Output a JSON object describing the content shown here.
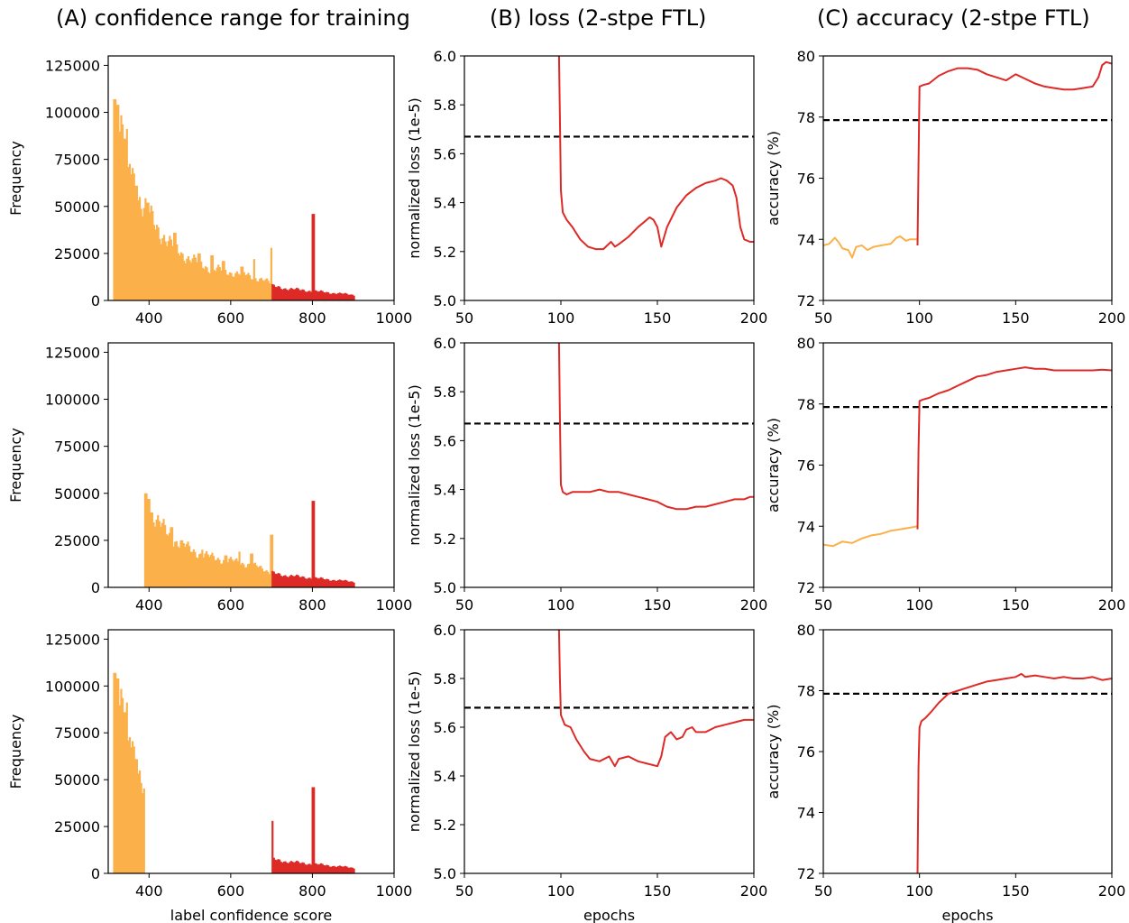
{
  "colors": {
    "orange": "#fbb04a",
    "red": "#de2a26",
    "dashed": "#000000"
  },
  "column_titles": [
    "(A) confidence range for training",
    "(B) loss (2-stpe FTL)",
    "(C) accuracy (2-stpe FTL)"
  ],
  "chart_data": [
    {
      "id": "A1",
      "type": "bar",
      "title": "(A) confidence range for training",
      "xlabel": "",
      "ylabel": "Frequency",
      "xlim": [
        300,
        1000
      ],
      "ylim": [
        0,
        130000
      ],
      "xticks": [
        "400",
        "600",
        "800",
        "1000"
      ],
      "xtick_values": [
        400,
        600,
        800,
        1000
      ],
      "yticks": [
        "0",
        "25000",
        "50000",
        "75000",
        "100000",
        "125000"
      ],
      "ytick_values": [
        0,
        25000,
        50000,
        75000,
        100000,
        125000
      ],
      "series": [
        {
          "color": "orange",
          "x_range": [
            312,
            700
          ],
          "keypoints": [
            [
              312,
              97000
            ],
            [
              316,
              107000
            ],
            [
              330,
              90000
            ],
            [
              350,
              75000
            ],
            [
              380,
              52000
            ],
            [
              400,
              45000
            ],
            [
              450,
              30000
            ],
            [
              500,
              22000
            ],
            [
              550,
              17000
            ],
            [
              600,
              15000
            ],
            [
              650,
              13000
            ],
            [
              700,
              9000
            ]
          ],
          "spikes": [
            [
              315,
              107000
            ],
            [
              321,
              104000
            ],
            [
              339,
              86000
            ],
            [
              347,
              71000
            ],
            [
              365,
              61000
            ],
            [
              395,
              52000
            ],
            [
              460,
              36000
            ],
            [
              520,
              25000
            ],
            [
              553,
              24000
            ],
            [
              580,
              21000
            ],
            [
              625,
              18000
            ],
            [
              655,
              22000
            ],
            [
              698,
              28000
            ]
          ]
        },
        {
          "color": "red",
          "x_range": [
            700,
            900
          ],
          "keypoints": [
            [
              700,
              7500
            ],
            [
              750,
              6000
            ],
            [
              800,
              5000
            ],
            [
              850,
              4000
            ],
            [
              900,
              3000
            ]
          ],
          "spikes": [
            [
              800,
              46000
            ]
          ]
        }
      ]
    },
    {
      "id": "B1",
      "type": "line",
      "title": "(B) loss (2-stpe FTL)",
      "xlabel": "",
      "ylabel": "normalized loss (1e-5)",
      "xlim": [
        50,
        200
      ],
      "ylim": [
        5.0,
        6.0
      ],
      "xticks": [
        "50",
        "100",
        "150",
        "200"
      ],
      "xtick_values": [
        50,
        100,
        150,
        200
      ],
      "yticks": [
        "5.0",
        "5.2",
        "5.4",
        "5.6",
        "5.8",
        "6.0"
      ],
      "ytick_values": [
        5.0,
        5.2,
        5.4,
        5.6,
        5.8,
        6.0
      ],
      "hline": 5.67,
      "series": [
        {
          "color": "red",
          "x": [
            99,
            99.5,
            100,
            101,
            103,
            106,
            110,
            114,
            118,
            122,
            126,
            128,
            130,
            135,
            140,
            143,
            146,
            148,
            150,
            152,
            155,
            160,
            165,
            170,
            175,
            180,
            183,
            186,
            189,
            191,
            193,
            195,
            198,
            200
          ],
          "y": [
            6.0,
            5.75,
            5.45,
            5.36,
            5.33,
            5.3,
            5.25,
            5.22,
            5.21,
            5.21,
            5.24,
            5.22,
            5.23,
            5.26,
            5.3,
            5.32,
            5.34,
            5.33,
            5.3,
            5.22,
            5.3,
            5.38,
            5.43,
            5.46,
            5.48,
            5.49,
            5.5,
            5.49,
            5.47,
            5.42,
            5.3,
            5.25,
            5.24,
            5.24
          ]
        }
      ]
    },
    {
      "id": "C1",
      "type": "line",
      "title": "(C) accuracy (2-stpe FTL)",
      "xlabel": "",
      "ylabel": "accuracy (%)",
      "xlim": [
        50,
        200
      ],
      "ylim": [
        72,
        80
      ],
      "xticks": [
        "50",
        "100",
        "150",
        "200"
      ],
      "xtick_values": [
        50,
        100,
        150,
        200
      ],
      "yticks": [
        "72",
        "74",
        "76",
        "78",
        "80"
      ],
      "ytick_values": [
        72,
        74,
        76,
        78,
        80
      ],
      "hline": 77.9,
      "series": [
        {
          "color": "orange",
          "x": [
            50,
            53,
            56,
            58,
            60,
            63,
            65,
            67,
            70,
            73,
            76,
            80,
            85,
            88,
            90,
            93,
            95,
            99
          ],
          "y": [
            73.8,
            73.85,
            74.05,
            73.9,
            73.7,
            73.65,
            73.4,
            73.75,
            73.8,
            73.65,
            73.75,
            73.8,
            73.85,
            74.05,
            74.1,
            73.95,
            74.0,
            74.0
          ]
        },
        {
          "color": "red",
          "x": [
            99,
            99.5,
            100,
            102,
            105,
            110,
            115,
            120,
            125,
            130,
            135,
            140,
            145,
            150,
            155,
            160,
            165,
            170,
            175,
            180,
            185,
            190,
            193,
            195,
            197,
            200
          ],
          "y": [
            73.8,
            76.5,
            79.0,
            79.05,
            79.1,
            79.35,
            79.5,
            79.6,
            79.6,
            79.55,
            79.4,
            79.3,
            79.2,
            79.4,
            79.25,
            79.1,
            79.0,
            78.95,
            78.9,
            78.9,
            78.95,
            79.0,
            79.3,
            79.7,
            79.8,
            79.75
          ]
        }
      ]
    },
    {
      "id": "A2",
      "type": "bar",
      "title": "",
      "xlabel": "",
      "ylabel": "Frequency",
      "xlim": [
        300,
        1000
      ],
      "ylim": [
        0,
        130000
      ],
      "xticks": [
        "400",
        "600",
        "800",
        "1000"
      ],
      "xtick_values": [
        400,
        600,
        800,
        1000
      ],
      "yticks": [
        "0",
        "25000",
        "50000",
        "75000",
        "100000",
        "125000"
      ],
      "ytick_values": [
        0,
        25000,
        50000,
        75000,
        100000,
        125000
      ],
      "series": [
        {
          "color": "orange",
          "x_range": [
            388,
            700
          ],
          "keypoints": [
            [
              388,
              48000
            ],
            [
              395,
              45000
            ],
            [
              420,
              35000
            ],
            [
              450,
              27000
            ],
            [
              500,
              20000
            ],
            [
              550,
              16000
            ],
            [
              600,
              14000
            ],
            [
              650,
              12000
            ],
            [
              700,
              8000
            ]
          ],
          "spikes": [
            [
              390,
              50000
            ],
            [
              398,
              47000
            ],
            [
              452,
              32000
            ],
            [
              478,
              25000
            ],
            [
              528,
              20000
            ],
            [
              586,
              17000
            ],
            [
              619,
              19000
            ],
            [
              650,
              18000
            ],
            [
              698,
              28000
            ]
          ]
        },
        {
          "color": "red",
          "x_range": [
            700,
            900
          ],
          "keypoints": [
            [
              700,
              7500
            ],
            [
              750,
              6000
            ],
            [
              800,
              5000
            ],
            [
              850,
              4000
            ],
            [
              900,
              3000
            ]
          ],
          "spikes": [
            [
              800,
              46000
            ]
          ]
        }
      ]
    },
    {
      "id": "B2",
      "type": "line",
      "title": "",
      "xlabel": "",
      "ylabel": "normalized loss (1e-5)",
      "xlim": [
        50,
        200
      ],
      "ylim": [
        5.0,
        6.0
      ],
      "xticks": [
        "50",
        "100",
        "150",
        "200"
      ],
      "xtick_values": [
        50,
        100,
        150,
        200
      ],
      "yticks": [
        "5.0",
        "5.2",
        "5.4",
        "5.6",
        "5.8",
        "6.0"
      ],
      "ytick_values": [
        5.0,
        5.2,
        5.4,
        5.6,
        5.8,
        6.0
      ],
      "hline": 5.67,
      "series": [
        {
          "color": "red",
          "x": [
            99,
            99.5,
            100,
            101,
            103,
            106,
            110,
            115,
            120,
            125,
            130,
            135,
            140,
            145,
            150,
            155,
            160,
            165,
            170,
            175,
            180,
            185,
            190,
            195,
            198,
            200
          ],
          "y": [
            6.0,
            5.7,
            5.42,
            5.39,
            5.38,
            5.39,
            5.39,
            5.39,
            5.4,
            5.39,
            5.39,
            5.38,
            5.37,
            5.36,
            5.35,
            5.33,
            5.32,
            5.32,
            5.33,
            5.33,
            5.34,
            5.35,
            5.36,
            5.36,
            5.37,
            5.37
          ]
        }
      ]
    },
    {
      "id": "C2",
      "type": "line",
      "title": "",
      "xlabel": "",
      "ylabel": "accuracy (%)",
      "xlim": [
        50,
        200
      ],
      "ylim": [
        72,
        80
      ],
      "xticks": [
        "50",
        "100",
        "150",
        "200"
      ],
      "xtick_values": [
        50,
        100,
        150,
        200
      ],
      "yticks": [
        "72",
        "74",
        "76",
        "78",
        "80"
      ],
      "ytick_values": [
        72,
        74,
        76,
        78,
        80
      ],
      "hline": 77.9,
      "series": [
        {
          "color": "orange",
          "x": [
            50,
            55,
            60,
            65,
            70,
            75,
            80,
            85,
            90,
            95,
            99
          ],
          "y": [
            73.4,
            73.35,
            73.5,
            73.45,
            73.6,
            73.7,
            73.75,
            73.85,
            73.9,
            73.95,
            74.0
          ]
        },
        {
          "color": "red",
          "x": [
            99,
            99.5,
            100,
            102,
            105,
            110,
            115,
            120,
            125,
            130,
            135,
            140,
            145,
            150,
            155,
            160,
            165,
            170,
            175,
            180,
            185,
            190,
            195,
            200
          ],
          "y": [
            73.9,
            76.5,
            78.1,
            78.15,
            78.2,
            78.35,
            78.45,
            78.6,
            78.75,
            78.9,
            78.95,
            79.05,
            79.1,
            79.15,
            79.2,
            79.15,
            79.15,
            79.1,
            79.1,
            79.1,
            79.1,
            79.1,
            79.12,
            79.1
          ]
        }
      ]
    },
    {
      "id": "A3",
      "type": "bar",
      "title": "",
      "xlabel": "label confidence score",
      "ylabel": "Frequency",
      "xlim": [
        300,
        1000
      ],
      "ylim": [
        0,
        130000
      ],
      "xticks": [
        "400",
        "600",
        "800",
        "1000"
      ],
      "xtick_values": [
        400,
        600,
        800,
        1000
      ],
      "yticks": [
        "0",
        "25000",
        "50000",
        "75000",
        "100000",
        "125000"
      ],
      "ytick_values": [
        0,
        25000,
        50000,
        75000,
        100000,
        125000
      ],
      "series": [
        {
          "color": "orange",
          "x_range": [
            312,
            388
          ],
          "keypoints": [
            [
              312,
              97000
            ],
            [
              316,
              107000
            ],
            [
              330,
              90000
            ],
            [
              350,
              75000
            ],
            [
              370,
              60000
            ],
            [
              388,
              45000
            ]
          ],
          "spikes": [
            [
              315,
              107000
            ],
            [
              321,
              104000
            ],
            [
              339,
              86000
            ],
            [
              347,
              71000
            ],
            [
              365,
              61000
            ]
          ]
        },
        {
          "color": "red",
          "x_range": [
            700,
            900
          ],
          "keypoints": [
            [
              700,
              7500
            ],
            [
              750,
              6000
            ],
            [
              800,
              5000
            ],
            [
              850,
              4000
            ],
            [
              900,
              3000
            ]
          ],
          "spikes": [
            [
              700,
              28000
            ],
            [
              800,
              46000
            ]
          ]
        }
      ]
    },
    {
      "id": "B3",
      "type": "line",
      "title": "",
      "xlabel": "epochs",
      "ylabel": "normalized loss (1e-5)",
      "xlim": [
        50,
        200
      ],
      "ylim": [
        5.0,
        6.0
      ],
      "xticks": [
        "50",
        "100",
        "150",
        "200"
      ],
      "xtick_values": [
        50,
        100,
        150,
        200
      ],
      "yticks": [
        "5.0",
        "5.2",
        "5.4",
        "5.6",
        "5.8",
        "6.0"
      ],
      "ytick_values": [
        5.0,
        5.2,
        5.4,
        5.6,
        5.8,
        6.0
      ],
      "hline": 5.68,
      "series": [
        {
          "color": "red",
          "x": [
            99,
            99.5,
            100,
            102,
            105,
            108,
            112,
            115,
            120,
            125,
            128,
            130,
            135,
            140,
            145,
            150,
            152,
            154,
            157,
            160,
            163,
            165,
            168,
            170,
            175,
            180,
            185,
            190,
            195,
            200
          ],
          "y": [
            6.0,
            5.8,
            5.65,
            5.61,
            5.6,
            5.55,
            5.5,
            5.47,
            5.46,
            5.48,
            5.44,
            5.47,
            5.48,
            5.46,
            5.45,
            5.44,
            5.48,
            5.56,
            5.58,
            5.55,
            5.56,
            5.59,
            5.6,
            5.58,
            5.58,
            5.6,
            5.61,
            5.62,
            5.63,
            5.63
          ]
        }
      ]
    },
    {
      "id": "C3",
      "type": "line",
      "title": "",
      "xlabel": "epochs",
      "ylabel": "accuracy (%)",
      "xlim": [
        50,
        200
      ],
      "ylim": [
        72,
        80
      ],
      "xticks": [
        "50",
        "100",
        "150",
        "200"
      ],
      "xtick_values": [
        50,
        100,
        150,
        200
      ],
      "yticks": [
        "72",
        "74",
        "76",
        "78",
        "80"
      ],
      "ytick_values": [
        72,
        74,
        76,
        78,
        80
      ],
      "hline": 77.9,
      "series": [
        {
          "color": "red",
          "x": [
            99,
            99.5,
            100,
            101,
            103,
            106,
            110,
            115,
            120,
            125,
            130,
            135,
            140,
            145,
            150,
            153,
            155,
            160,
            165,
            170,
            175,
            180,
            185,
            190,
            195,
            200
          ],
          "y": [
            72.0,
            75.5,
            76.8,
            77.0,
            77.1,
            77.3,
            77.6,
            77.9,
            78.0,
            78.1,
            78.2,
            78.3,
            78.35,
            78.4,
            78.45,
            78.55,
            78.45,
            78.5,
            78.45,
            78.4,
            78.45,
            78.4,
            78.4,
            78.45,
            78.35,
            78.4
          ]
        }
      ]
    }
  ]
}
